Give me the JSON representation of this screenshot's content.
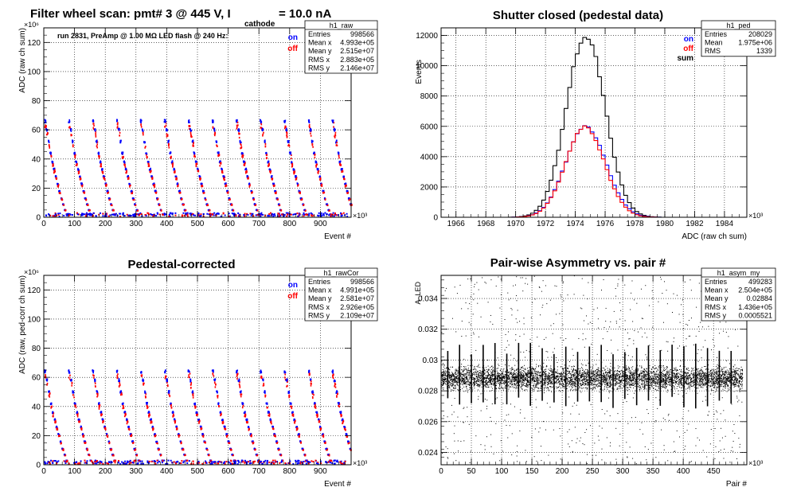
{
  "chart_data": [
    {
      "type": "scatter",
      "title": "Filter wheel scan: pmt#   3 @   445 V, I",
      "title_sub": "cathode",
      "title_tail": "  = 10.0 nA",
      "annotation": "run 2831, PreAmp @ 1.00 MΩ   LED flash @  240 Hz:",
      "xlabel": "Event #",
      "ylabel": "ADC (raw ch sum)",
      "x_exponent": "×10³",
      "y_exponent": "×10⁶",
      "xlim": [
        0,
        1000000
      ],
      "ylim": [
        0,
        130000000
      ],
      "xticks": [
        "0",
        "100",
        "200",
        "300",
        "400",
        "500",
        "600",
        "700",
        "800",
        "900"
      ],
      "yticks": [
        "0",
        "20",
        "40",
        "60",
        "80",
        "100",
        "120"
      ],
      "legend": [
        {
          "name": "on",
          "color": "#0000ff"
        },
        {
          "name": "off",
          "color": "#ff0000"
        }
      ],
      "stats": {
        "title": "h1_raw",
        "rows": [
          [
            "Entries",
            "998566"
          ],
          [
            "Mean x",
            "4.993e+05"
          ],
          [
            "Mean y",
            "2.515e+07"
          ],
          [
            "RMS x",
            "2.883e+05"
          ],
          [
            "RMS y",
            "2.146e+07"
          ]
        ]
      },
      "levels": [
        66,
        60,
        52,
        44,
        38,
        33,
        28,
        23,
        18,
        13,
        9,
        5,
        2
      ],
      "period": 78000,
      "grid": true
    },
    {
      "type": "line",
      "title": "Shutter closed (pedestal data)",
      "xlabel": "ADC (raw ch sum)",
      "ylabel": "Events",
      "x_exponent": "×10³",
      "xlim": [
        1965000,
        1985500
      ],
      "ylim": [
        0,
        12500
      ],
      "xticks": [
        "1966",
        "1968",
        "1970",
        "1972",
        "1974",
        "1976",
        "1978",
        "1980",
        "1982",
        "1984"
      ],
      "yticks": [
        "0",
        "2000",
        "4000",
        "6000",
        "8000",
        "10000",
        "12000"
      ],
      "legend": [
        {
          "name": "on",
          "color": "#0000ff"
        },
        {
          "name": "off",
          "color": "#ff0000"
        },
        {
          "name": "sum",
          "color": "#000000"
        }
      ],
      "stats": {
        "title": "h1_ped",
        "rows": [
          [
            "Entries",
            "208029"
          ],
          [
            "Mean",
            "1.975e+06"
          ],
          [
            "RMS",
            "1339"
          ]
        ]
      },
      "series": [
        {
          "name": "sum",
          "color": "#000000",
          "mean": 1974700,
          "sigma": 1300,
          "peak": 12000
        },
        {
          "name": "on",
          "color": "#0000ff",
          "mean": 1974700,
          "sigma": 1340,
          "peak": 6000
        },
        {
          "name": "off",
          "color": "#ff0000",
          "mean": 1974650,
          "sigma": 1300,
          "peak": 5950
        }
      ],
      "grid": true
    },
    {
      "type": "scatter",
      "title": "Pedestal-corrected",
      "xlabel": "Event #",
      "ylabel": "ADC (raw, ped-corr ch sum)",
      "x_exponent": "×10³",
      "y_exponent": "×10⁶",
      "xlim": [
        0,
        1000000
      ],
      "ylim": [
        0,
        130000000
      ],
      "xticks": [
        "0",
        "100",
        "200",
        "300",
        "400",
        "500",
        "600",
        "700",
        "800",
        "900"
      ],
      "yticks": [
        "0",
        "20",
        "40",
        "60",
        "80",
        "100",
        "120"
      ],
      "legend": [
        {
          "name": "on",
          "color": "#0000ff"
        },
        {
          "name": "off",
          "color": "#ff0000"
        }
      ],
      "stats": {
        "title": "h1_rawCor",
        "rows": [
          [
            "Entries",
            "998566"
          ],
          [
            "Mean x",
            "4.991e+05"
          ],
          [
            "Mean y",
            "2.581e+07"
          ],
          [
            "RMS x",
            "2.926e+05"
          ],
          [
            "RMS y",
            "2.109e+07"
          ]
        ]
      },
      "levels": [
        64,
        58,
        50,
        42,
        36,
        31,
        26,
        21,
        16,
        11,
        7,
        3
      ],
      "period": 78000,
      "grid": true
    },
    {
      "type": "scatter",
      "title": "Pair-wise Asymmetry vs. pair #",
      "xlabel": "Pair #",
      "ylabel": "A_LED",
      "x_exponent": "×10³",
      "xlim": [
        0,
        505000
      ],
      "ylim": [
        0.0232,
        0.0355
      ],
      "xticks": [
        "0",
        "50",
        "100",
        "150",
        "200",
        "250",
        "300",
        "350",
        "400",
        "450"
      ],
      "yticks": [
        "0.024",
        "0.026",
        "0.028",
        "0.03",
        "0.032",
        "0.034"
      ],
      "stats": {
        "title": "h1_asym_my",
        "rows": [
          [
            "Entries",
            "499283"
          ],
          [
            "Mean x",
            "2.504e+05"
          ],
          [
            "Mean y",
            "0.02884"
          ],
          [
            "RMS x",
            "1.436e+05"
          ],
          [
            "RMS y",
            "0.0005521"
          ]
        ]
      },
      "band_center": 0.02884,
      "band_halfwidth": 0.0006,
      "spike_period": 19500,
      "grid": true
    }
  ]
}
